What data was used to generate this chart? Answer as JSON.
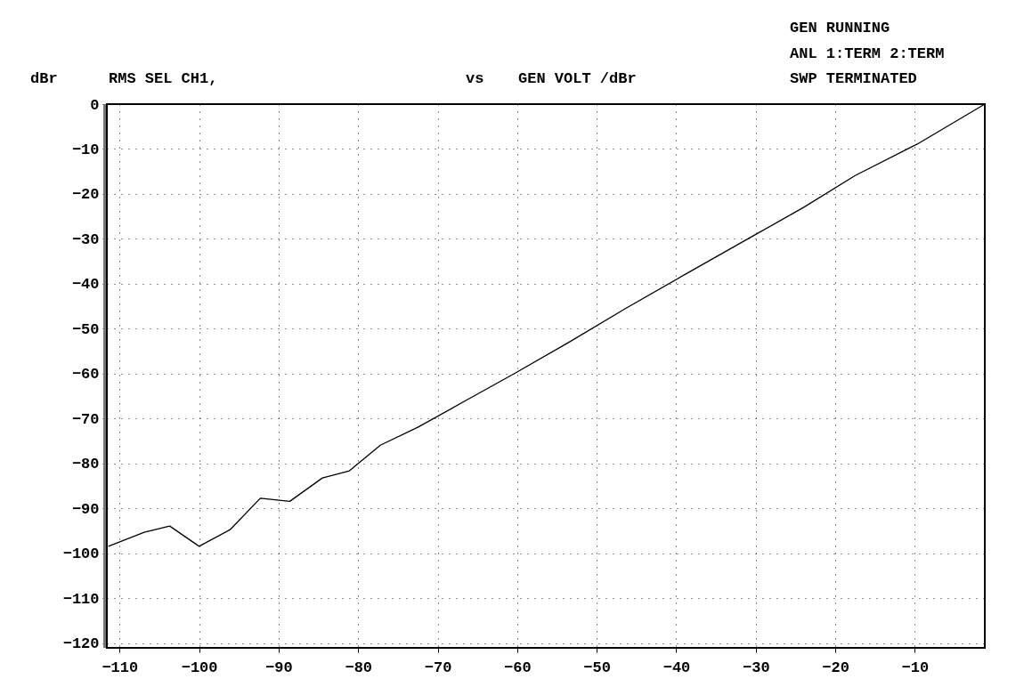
{
  "chart_data": {
    "type": "line",
    "ylabel": "dBr",
    "annotations": [
      "RMS SEL  CH1,",
      "vs",
      "GEN VOLT /dBr",
      "GEN RUNNING",
      "ANL 1:TERM 2:TERM",
      "SWP TERMINATED"
    ],
    "x": [
      -111.4,
      -106.9,
      -103.7,
      -100.0,
      -96.1,
      -92.3,
      -88.6,
      -84.5,
      -81.1,
      -77.2,
      -72.5,
      -66.5,
      -60.4,
      -53.5,
      -46.3,
      -38.5,
      -30.0,
      -24.0,
      -17.5,
      -9.7,
      -1.2
    ],
    "series": [
      {
        "color": "#000000",
        "values": [
          -98.4,
          -95.3,
          -93.9,
          -98.4,
          -94.7,
          -87.7,
          -88.4,
          -83.2,
          -81.6,
          -75.9,
          -71.9,
          -66.0,
          -60.0,
          -53.0,
          -45.4,
          -37.5,
          -29.0,
          -23.0,
          -15.9,
          -8.9,
          0
        ]
      }
    ],
    "xlim": [
      -111.6,
      -1.2
    ],
    "ylim": [
      -121,
      0
    ],
    "xticks": [
      -110,
      -100,
      -90,
      -80,
      -70,
      -60,
      -50,
      -40,
      -30,
      -20,
      -10
    ],
    "yticks": [
      0,
      -10,
      -20,
      -30,
      -40,
      -50,
      -60,
      -70,
      -80,
      -90,
      -100,
      -110,
      -120
    ],
    "grid": true,
    "legend": false,
    "marker": "none",
    "line_style": "solid"
  }
}
